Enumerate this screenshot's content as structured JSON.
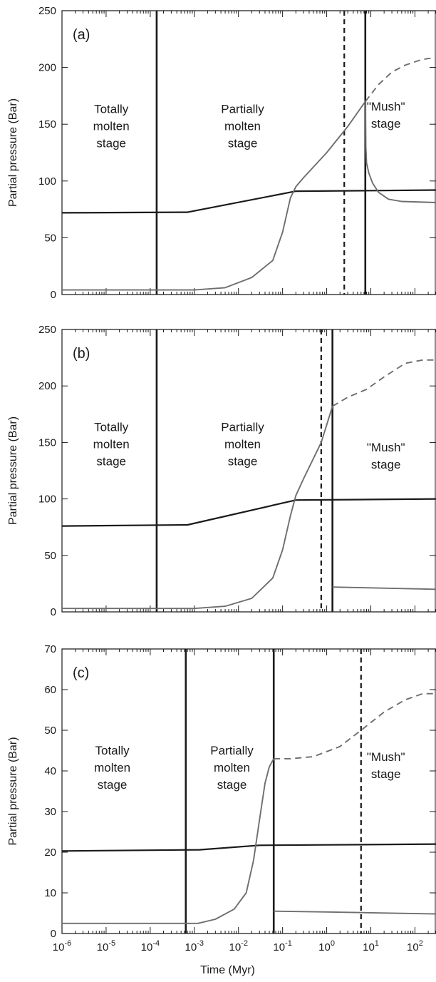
{
  "chart_data": [
    {
      "type": "line",
      "panel_label": "(a)",
      "ylabel": "Partial pressure (Bar)",
      "xlabel": "",
      "xscale": "log",
      "xlim": [
        1e-06,
        300
      ],
      "ylim": [
        0,
        250
      ],
      "yticks": [
        0,
        50,
        100,
        150,
        200,
        250
      ],
      "xticks": [],
      "stage_labels": [
        {
          "lines": [
            "Totally",
            "molten",
            "stage"
          ],
          "x": 1.31e-05,
          "y": 160
        },
        {
          "lines": [
            "Partially",
            "molten",
            "stage"
          ],
          "x": 0.0124,
          "y": 160
        },
        {
          "lines": [
            "\"Mush\"",
            "stage"
          ],
          "x": 22,
          "y": 162
        }
      ],
      "vlines": [
        {
          "x": 0.00014,
          "style": "solid"
        },
        {
          "x": 2.5,
          "style": "dashed"
        },
        {
          "x": 7.5,
          "style": "solid"
        }
      ],
      "series": [
        {
          "color": "#1a1a1a",
          "style": "solid",
          "x": [
            1e-06,
            0.0007,
            0.2,
            10,
            300
          ],
          "y": [
            72,
            72.5,
            91,
            91.5,
            92
          ]
        },
        {
          "color": "#6e6e6e",
          "style": "solid",
          "x": [
            1e-06,
            0.001,
            0.005,
            0.02,
            0.06,
            0.1,
            0.15,
            0.2,
            0.3,
            1,
            3,
            7.5
          ],
          "y": [
            4,
            4,
            6,
            15,
            30,
            55,
            85,
            95,
            103,
            125,
            148,
            170
          ]
        },
        {
          "color": "#6e6e6e",
          "style": "dashed",
          "x": [
            7.5,
            15,
            30,
            60,
            120,
            200,
            300
          ],
          "y": [
            170,
            185,
            196,
            202,
            206,
            208,
            208
          ]
        },
        {
          "color": "#6e6e6e",
          "style": "solid",
          "x": [
            7.5,
            7.7,
            8,
            9,
            11,
            15,
            25,
            50,
            300
          ],
          "y": [
            170,
            130,
            116,
            107,
            98,
            90,
            84,
            82,
            81
          ]
        }
      ]
    },
    {
      "type": "line",
      "panel_label": "(b)",
      "ylabel": "Partial pressure (Bar)",
      "xlabel": "",
      "xscale": "log",
      "xlim": [
        1e-06,
        300
      ],
      "ylim": [
        0,
        250
      ],
      "yticks": [
        0,
        50,
        100,
        150,
        200,
        250
      ],
      "xticks": [],
      "stage_labels": [
        {
          "lines": [
            "Totally",
            "molten",
            "stage"
          ],
          "x": 1.31e-05,
          "y": 160
        },
        {
          "lines": [
            "Partially",
            "molten",
            "stage"
          ],
          "x": 0.0124,
          "y": 160
        },
        {
          "lines": [
            "\"Mush\"",
            "stage"
          ],
          "x": 22,
          "y": 142
        }
      ],
      "vlines": [
        {
          "x": 0.00014,
          "style": "solid"
        },
        {
          "x": 0.75,
          "style": "dashed"
        },
        {
          "x": 1.35,
          "style": "solid"
        }
      ],
      "series": [
        {
          "color": "#1a1a1a",
          "style": "solid",
          "x": [
            1e-06,
            0.0007,
            0.2,
            10,
            300
          ],
          "y": [
            76,
            77,
            99,
            99.5,
            100
          ]
        },
        {
          "color": "#6e6e6e",
          "style": "solid",
          "x": [
            1e-06,
            0.001,
            0.005,
            0.02,
            0.06,
            0.1,
            0.15,
            0.2,
            0.3,
            0.75,
            1.35
          ],
          "y": [
            3,
            3,
            5,
            12,
            30,
            55,
            85,
            103,
            118,
            150,
            182
          ]
        },
        {
          "color": "#6e6e6e",
          "style": "dashed",
          "x": [
            1.35,
            3,
            8,
            20,
            60,
            150,
            300
          ],
          "y": [
            182,
            190,
            197,
            208,
            220,
            223,
            223
          ]
        },
        {
          "color": "#6e6e6e",
          "style": "solid",
          "x": [
            1.35,
            300
          ],
          "y": [
            22,
            20
          ]
        }
      ]
    },
    {
      "type": "line",
      "panel_label": "(c)",
      "ylabel": "Partial pressure (Bar)",
      "xlabel": "Time (Myr)",
      "xscale": "log",
      "xlim": [
        1e-06,
        300
      ],
      "ylim": [
        0,
        70
      ],
      "yticks": [
        0,
        10,
        20,
        30,
        40,
        50,
        60,
        70
      ],
      "xticks": [
        {
          "x": 1e-06,
          "base": "10",
          "exp": "-6"
        },
        {
          "x": 1e-05,
          "base": "10",
          "exp": "-5"
        },
        {
          "x": 0.0001,
          "base": "10",
          "exp": "-4"
        },
        {
          "x": 0.001,
          "base": "10",
          "exp": "-3"
        },
        {
          "x": 0.01,
          "base": "10",
          "exp": "-2"
        },
        {
          "x": 0.1,
          "base": "10",
          "exp": "-1"
        },
        {
          "x": 1,
          "base": "10",
          "exp": "0"
        },
        {
          "x": 10,
          "base": "10",
          "exp": "1"
        },
        {
          "x": 100,
          "base": "10",
          "exp": "2"
        }
      ],
      "stage_labels": [
        {
          "lines": [
            "Totally",
            "molten",
            "stage"
          ],
          "x": 1.38e-05,
          "y": 44
        },
        {
          "lines": [
            "Partially",
            "molten",
            "stage"
          ],
          "x": 0.0071,
          "y": 44
        },
        {
          "lines": [
            "\"Mush\"",
            "stage"
          ],
          "x": 22,
          "y": 42.5
        }
      ],
      "vlines": [
        {
          "x": 0.00064,
          "style": "solid"
        },
        {
          "x": 0.063,
          "style": "solid"
        },
        {
          "x": 6,
          "style": "dashed"
        }
      ],
      "series": [
        {
          "color": "#1a1a1a",
          "style": "solid",
          "x": [
            1e-06,
            0.0013,
            0.03,
            1,
            300
          ],
          "y": [
            20.3,
            20.6,
            21.7,
            21.8,
            22
          ]
        },
        {
          "color": "#6e6e6e",
          "style": "solid",
          "x": [
            1e-06,
            0.0012,
            0.003,
            0.008,
            0.015,
            0.022,
            0.03,
            0.04,
            0.05,
            0.063
          ],
          "y": [
            2.5,
            2.5,
            3.5,
            6,
            10,
            18,
            28,
            37,
            41,
            43
          ]
        },
        {
          "color": "#6e6e6e",
          "style": "dashed",
          "x": [
            0.063,
            0.15,
            0.5,
            2,
            6,
            20,
            60,
            150,
            300
          ],
          "y": [
            43,
            43,
            43.5,
            46,
            50,
            54.5,
            57.5,
            59,
            59
          ]
        },
        {
          "color": "#6e6e6e",
          "style": "solid",
          "x": [
            0.063,
            1,
            10,
            300
          ],
          "y": [
            5.5,
            5.3,
            5.1,
            4.8
          ]
        }
      ]
    }
  ]
}
